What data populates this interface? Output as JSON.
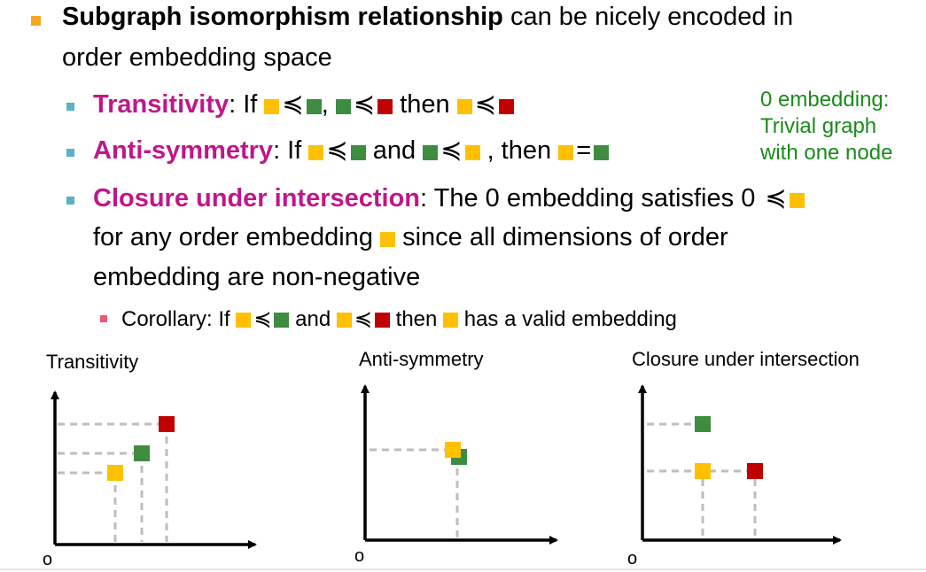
{
  "bullet_main": {
    "bold": "Subgraph isomorphism relationship",
    "rest_line1": " can be nicely encoded in",
    "line2": "order embedding space"
  },
  "transitivity": {
    "term": "Transitivity",
    "colon_if": ": If",
    "rel": "≼",
    "comma": ",",
    "then": "then"
  },
  "antisymmetry": {
    "term": "Anti-symmetry",
    "colon_if": ": If",
    "rel": "≼",
    "and": "and",
    "comma_then": ", then",
    "eq": "="
  },
  "closure": {
    "term": "Closure under intersection",
    "line1_rest": ": The 0 embedding satisfies 0",
    "rel": "≼",
    "line2_a": "for any order embedding",
    "line2_b": "since all dimensions of order",
    "line3": "embedding are non-negative"
  },
  "corollary": {
    "prefix": "Corollary: If",
    "rel": "≼",
    "and": "and",
    "then": "then",
    "suffix": "has a valid embedding"
  },
  "side_note": {
    "line1": "0 embedding:",
    "line2": "Trivial graph",
    "line3": "with one node"
  },
  "plots": [
    {
      "title": "Transitivity",
      "origin": "o"
    },
    {
      "title": "Anti-symmetry",
      "origin": "o"
    },
    {
      "title": "Closure under intersection",
      "origin": "o"
    }
  ],
  "colors": {
    "orange": "#ffc000",
    "green": "#3d8c40",
    "red": "#c00000",
    "term_magenta": "#c0168a",
    "note_green": "#1b8a1b",
    "dash_gray": "#bdbdbd"
  }
}
